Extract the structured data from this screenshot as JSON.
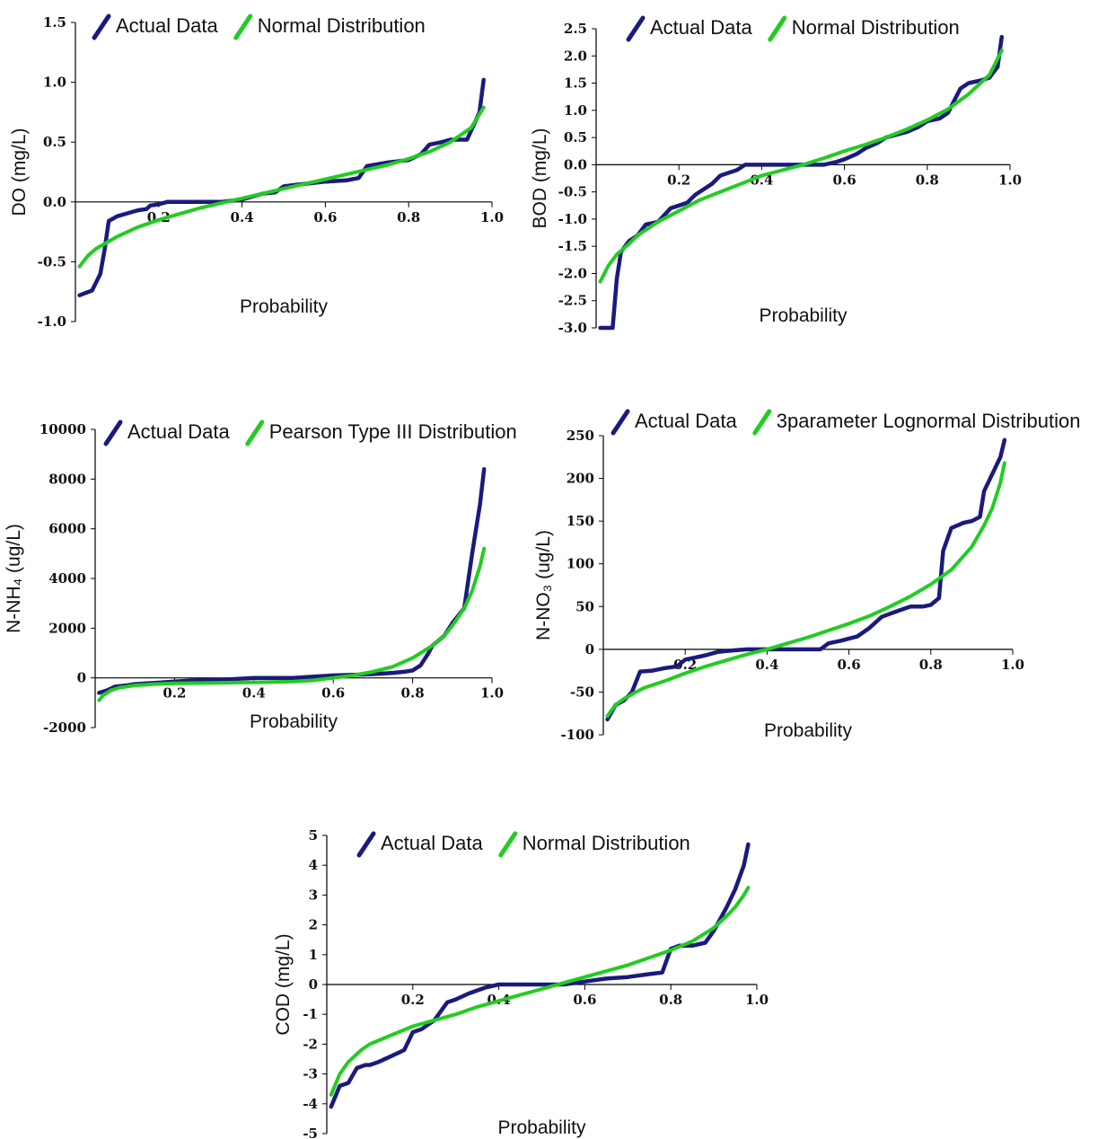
{
  "colors": {
    "actual": "#1a1a7e",
    "fitted": "#22cc22",
    "axis": "#000000"
  },
  "chart_data": [
    {
      "type": "line",
      "ylabel": "DO (mg/L)",
      "xlabel": "Probability",
      "xlim": [
        0,
        1.0
      ],
      "ylim": [
        -1.0,
        1.5
      ],
      "xticks": [
        0.2,
        0.4,
        0.6,
        0.8,
        1.0
      ],
      "xtick_labels": [
        "0.2",
        "0.4",
        "0.6",
        "0.8",
        "1.0"
      ],
      "yticks": [
        1.5,
        1.0,
        0.5,
        0.0,
        -0.5,
        -1.0
      ],
      "ytick_labels": [
        "1.5",
        "1.0",
        "0.5",
        "0.0",
        "-0.5",
        "-1.0"
      ],
      "series": [
        {
          "name": "Actual Data",
          "x": [
            0.01,
            0.04,
            0.06,
            0.07,
            0.08,
            0.1,
            0.12,
            0.15,
            0.17,
            0.18,
            0.2,
            0.22,
            0.25,
            0.3,
            0.35,
            0.4,
            0.45,
            0.48,
            0.5,
            0.52,
            0.55,
            0.6,
            0.65,
            0.68,
            0.7,
            0.75,
            0.8,
            0.83,
            0.85,
            0.88,
            0.9,
            0.93,
            0.94,
            0.97,
            0.98
          ],
          "y": [
            -0.78,
            -0.74,
            -0.6,
            -0.4,
            -0.16,
            -0.12,
            -0.1,
            -0.07,
            -0.06,
            -0.03,
            -0.02,
            0.0,
            0.0,
            0.0,
            0.0,
            0.02,
            0.07,
            0.08,
            0.13,
            0.14,
            0.15,
            0.17,
            0.18,
            0.2,
            0.3,
            0.33,
            0.35,
            0.4,
            0.48,
            0.5,
            0.52,
            0.52,
            0.52,
            0.75,
            1.02
          ]
        },
        {
          "name": "Normal Distribution",
          "x": [
            0.01,
            0.03,
            0.05,
            0.08,
            0.1,
            0.15,
            0.2,
            0.25,
            0.3,
            0.35,
            0.4,
            0.45,
            0.5,
            0.55,
            0.6,
            0.65,
            0.7,
            0.75,
            0.8,
            0.85,
            0.9,
            0.95,
            0.98
          ],
          "y": [
            -0.54,
            -0.45,
            -0.39,
            -0.33,
            -0.29,
            -0.21,
            -0.15,
            -0.1,
            -0.05,
            -0.01,
            0.03,
            0.07,
            0.11,
            0.15,
            0.19,
            0.23,
            0.27,
            0.31,
            0.36,
            0.42,
            0.5,
            0.62,
            0.79
          ]
        }
      ]
    },
    {
      "type": "line",
      "ylabel": "BOD (mg/L)",
      "xlabel": "Probability",
      "xlim": [
        0,
        1.0
      ],
      "ylim": [
        -3.0,
        2.5
      ],
      "xticks": [
        0.2,
        0.4,
        0.6,
        0.8,
        1.0
      ],
      "xtick_labels": [
        "0.2",
        "0.4",
        "0.6",
        "0.8",
        "1.0"
      ],
      "yticks": [
        2.5,
        2.0,
        1.5,
        1.0,
        0.5,
        0.0,
        -0.5,
        -1.0,
        -1.5,
        -2.0,
        -2.5,
        -3.0
      ],
      "ytick_labels": [
        "2.5",
        "2.0",
        "1.5",
        "1.0",
        "0.5",
        "0.0",
        "-0.5",
        "-1.0",
        "-1.5",
        "-2.0",
        "-2.5",
        "-3.0"
      ],
      "series": [
        {
          "name": "Actual Data",
          "x": [
            0.01,
            0.04,
            0.05,
            0.06,
            0.08,
            0.1,
            0.12,
            0.15,
            0.18,
            0.2,
            0.22,
            0.24,
            0.27,
            0.28,
            0.3,
            0.32,
            0.34,
            0.36,
            0.4,
            0.45,
            0.5,
            0.55,
            0.58,
            0.6,
            0.63,
            0.65,
            0.68,
            0.7,
            0.75,
            0.78,
            0.8,
            0.83,
            0.85,
            0.88,
            0.9,
            0.93,
            0.95,
            0.97,
            0.98
          ],
          "y": [
            -3.0,
            -3.0,
            -2.1,
            -1.6,
            -1.4,
            -1.3,
            -1.1,
            -1.05,
            -0.8,
            -0.75,
            -0.7,
            -0.55,
            -0.4,
            -0.35,
            -0.2,
            -0.15,
            -0.1,
            0.0,
            0.0,
            0.0,
            0.0,
            0.0,
            0.05,
            0.1,
            0.2,
            0.3,
            0.4,
            0.5,
            0.6,
            0.7,
            0.8,
            0.85,
            0.95,
            1.4,
            1.5,
            1.55,
            1.6,
            1.8,
            2.35
          ]
        },
        {
          "name": "Normal Distribution",
          "x": [
            0.01,
            0.03,
            0.05,
            0.08,
            0.1,
            0.15,
            0.2,
            0.25,
            0.3,
            0.35,
            0.4,
            0.45,
            0.5,
            0.55,
            0.6,
            0.65,
            0.7,
            0.75,
            0.8,
            0.85,
            0.9,
            0.95,
            0.98
          ],
          "y": [
            -2.15,
            -1.85,
            -1.65,
            -1.45,
            -1.3,
            -1.05,
            -0.85,
            -0.65,
            -0.5,
            -0.35,
            -0.2,
            -0.1,
            0.0,
            0.12,
            0.25,
            0.37,
            0.5,
            0.65,
            0.82,
            1.02,
            1.3,
            1.65,
            2.1
          ]
        }
      ]
    },
    {
      "type": "line",
      "ylabel": "N-NH₄ (ug/L)",
      "xlabel": "Probability",
      "xlim": [
        0,
        1.0
      ],
      "ylim": [
        -2000,
        10000
      ],
      "xticks": [
        0.2,
        0.4,
        0.6,
        0.8,
        1.0
      ],
      "xtick_labels": [
        "0.2",
        "0.4",
        "0.6",
        "0.8",
        "1.0"
      ],
      "yticks": [
        10000,
        8000,
        6000,
        4000,
        2000,
        0,
        -2000
      ],
      "ytick_labels": [
        "10000",
        "8000",
        "6000",
        "4000",
        "2000",
        "0",
        "-2000"
      ],
      "series": [
        {
          "name": "Actual Data",
          "x": [
            0.01,
            0.03,
            0.05,
            0.08,
            0.1,
            0.15,
            0.2,
            0.25,
            0.3,
            0.35,
            0.4,
            0.45,
            0.5,
            0.55,
            0.58,
            0.6,
            0.65,
            0.7,
            0.75,
            0.78,
            0.8,
            0.82,
            0.84,
            0.85,
            0.88,
            0.9,
            0.92,
            0.93,
            0.95,
            0.97,
            0.98
          ],
          "y": [
            -600,
            -500,
            -350,
            -300,
            -250,
            -200,
            -150,
            -100,
            -80,
            -50,
            0,
            0,
            0,
            50,
            80,
            100,
            120,
            150,
            200,
            250,
            300,
            500,
            1000,
            1300,
            1700,
            2200,
            2600,
            2800,
            5000,
            7000,
            8400
          ]
        },
        {
          "name": "Pearson Type III Distribution",
          "x": [
            0.01,
            0.02,
            0.04,
            0.06,
            0.08,
            0.1,
            0.15,
            0.2,
            0.3,
            0.4,
            0.5,
            0.55,
            0.6,
            0.65,
            0.7,
            0.75,
            0.8,
            0.85,
            0.88,
            0.9,
            0.93,
            0.95,
            0.97,
            0.98
          ],
          "y": [
            -900,
            -700,
            -500,
            -400,
            -350,
            -300,
            -250,
            -220,
            -200,
            -180,
            -150,
            -100,
            0,
            100,
            250,
            450,
            800,
            1300,
            1700,
            2100,
            2800,
            3500,
            4500,
            5200
          ]
        }
      ]
    },
    {
      "type": "line",
      "ylabel": "N-NO₃ (ug/L)",
      "xlabel": "Probability",
      "xlim": [
        0,
        1.0
      ],
      "ylim": [
        -100,
        250
      ],
      "xticks": [
        0.2,
        0.4,
        0.6,
        0.8,
        1.0
      ],
      "xtick_labels": [
        "0.2",
        "0.4",
        "0.6",
        "0.8",
        "1.0"
      ],
      "yticks": [
        250,
        200,
        150,
        100,
        50,
        0,
        -50,
        -100
      ],
      "ytick_labels": [
        "250",
        "200",
        "150",
        "100",
        "50",
        "0",
        "-50",
        "-100"
      ],
      "series": [
        {
          "name": "Actual Data",
          "x": [
            0.01,
            0.03,
            0.05,
            0.07,
            0.09,
            0.12,
            0.15,
            0.18,
            0.2,
            0.22,
            0.25,
            0.28,
            0.3,
            0.35,
            0.4,
            0.45,
            0.5,
            0.53,
            0.55,
            0.58,
            0.62,
            0.65,
            0.68,
            0.72,
            0.75,
            0.78,
            0.8,
            0.82,
            0.83,
            0.85,
            0.88,
            0.9,
            0.92,
            0.93,
            0.95,
            0.97,
            0.98
          ],
          "y": [
            -82,
            -65,
            -60,
            -50,
            -26,
            -25,
            -22,
            -20,
            -12,
            -10,
            -7,
            -3,
            -2,
            0,
            0,
            0,
            0,
            0,
            7,
            10,
            15,
            25,
            38,
            45,
            50,
            50,
            52,
            60,
            115,
            142,
            148,
            150,
            155,
            185,
            205,
            225,
            245
          ]
        },
        {
          "name": "3parameter Lognormal Distribution",
          "x": [
            0.01,
            0.03,
            0.05,
            0.08,
            0.1,
            0.15,
            0.2,
            0.25,
            0.3,
            0.35,
            0.4,
            0.45,
            0.5,
            0.55,
            0.6,
            0.65,
            0.7,
            0.75,
            0.8,
            0.85,
            0.9,
            0.93,
            0.95,
            0.97,
            0.98
          ],
          "y": [
            -78,
            -65,
            -58,
            -50,
            -45,
            -37,
            -28,
            -20,
            -13,
            -6,
            0,
            7,
            14,
            22,
            30,
            39,
            50,
            62,
            76,
            93,
            120,
            145,
            165,
            195,
            218
          ]
        }
      ]
    },
    {
      "type": "line",
      "ylabel": "COD (mg/L)",
      "xlabel": "Probability",
      "xlim": [
        0,
        1.0
      ],
      "ylim": [
        -5,
        5
      ],
      "xticks": [
        0.2,
        0.4,
        0.6,
        0.8,
        1.0
      ],
      "xtick_labels": [
        "0.2",
        "0.4",
        "0.6",
        "0.8",
        "1.0"
      ],
      "yticks": [
        5,
        4,
        3,
        2,
        1,
        0,
        -1,
        -2,
        -3,
        -4,
        -5
      ],
      "ytick_labels": [
        "5",
        "4",
        "3",
        "2",
        "1",
        "0",
        "-1",
        "-2",
        "-3",
        "-4",
        "-5"
      ],
      "series": [
        {
          "name": "Actual Data",
          "x": [
            0.01,
            0.03,
            0.05,
            0.07,
            0.09,
            0.1,
            0.12,
            0.15,
            0.18,
            0.2,
            0.22,
            0.25,
            0.28,
            0.3,
            0.33,
            0.35,
            0.37,
            0.4,
            0.45,
            0.5,
            0.55,
            0.6,
            0.65,
            0.7,
            0.75,
            0.78,
            0.8,
            0.82,
            0.85,
            0.88,
            0.9,
            0.93,
            0.95,
            0.97,
            0.98
          ],
          "y": [
            -4.1,
            -3.4,
            -3.3,
            -2.8,
            -2.7,
            -2.7,
            -2.6,
            -2.4,
            -2.2,
            -1.6,
            -1.5,
            -1.2,
            -0.6,
            -0.5,
            -0.3,
            -0.2,
            -0.1,
            0.0,
            0.0,
            0.0,
            0.0,
            0.1,
            0.2,
            0.25,
            0.35,
            0.4,
            1.2,
            1.3,
            1.3,
            1.4,
            1.8,
            2.6,
            3.2,
            4.0,
            4.7
          ]
        },
        {
          "name": "Normal Distribution",
          "x": [
            0.01,
            0.03,
            0.05,
            0.08,
            0.1,
            0.15,
            0.2,
            0.25,
            0.3,
            0.35,
            0.4,
            0.45,
            0.5,
            0.55,
            0.6,
            0.65,
            0.7,
            0.75,
            0.8,
            0.85,
            0.9,
            0.93,
            0.95,
            0.97,
            0.98
          ],
          "y": [
            -3.7,
            -3.0,
            -2.6,
            -2.2,
            -2.0,
            -1.7,
            -1.4,
            -1.2,
            -1.0,
            -0.75,
            -0.55,
            -0.35,
            -0.15,
            0.05,
            0.25,
            0.45,
            0.65,
            0.9,
            1.15,
            1.45,
            1.9,
            2.3,
            2.6,
            3.0,
            3.25
          ]
        }
      ]
    }
  ]
}
